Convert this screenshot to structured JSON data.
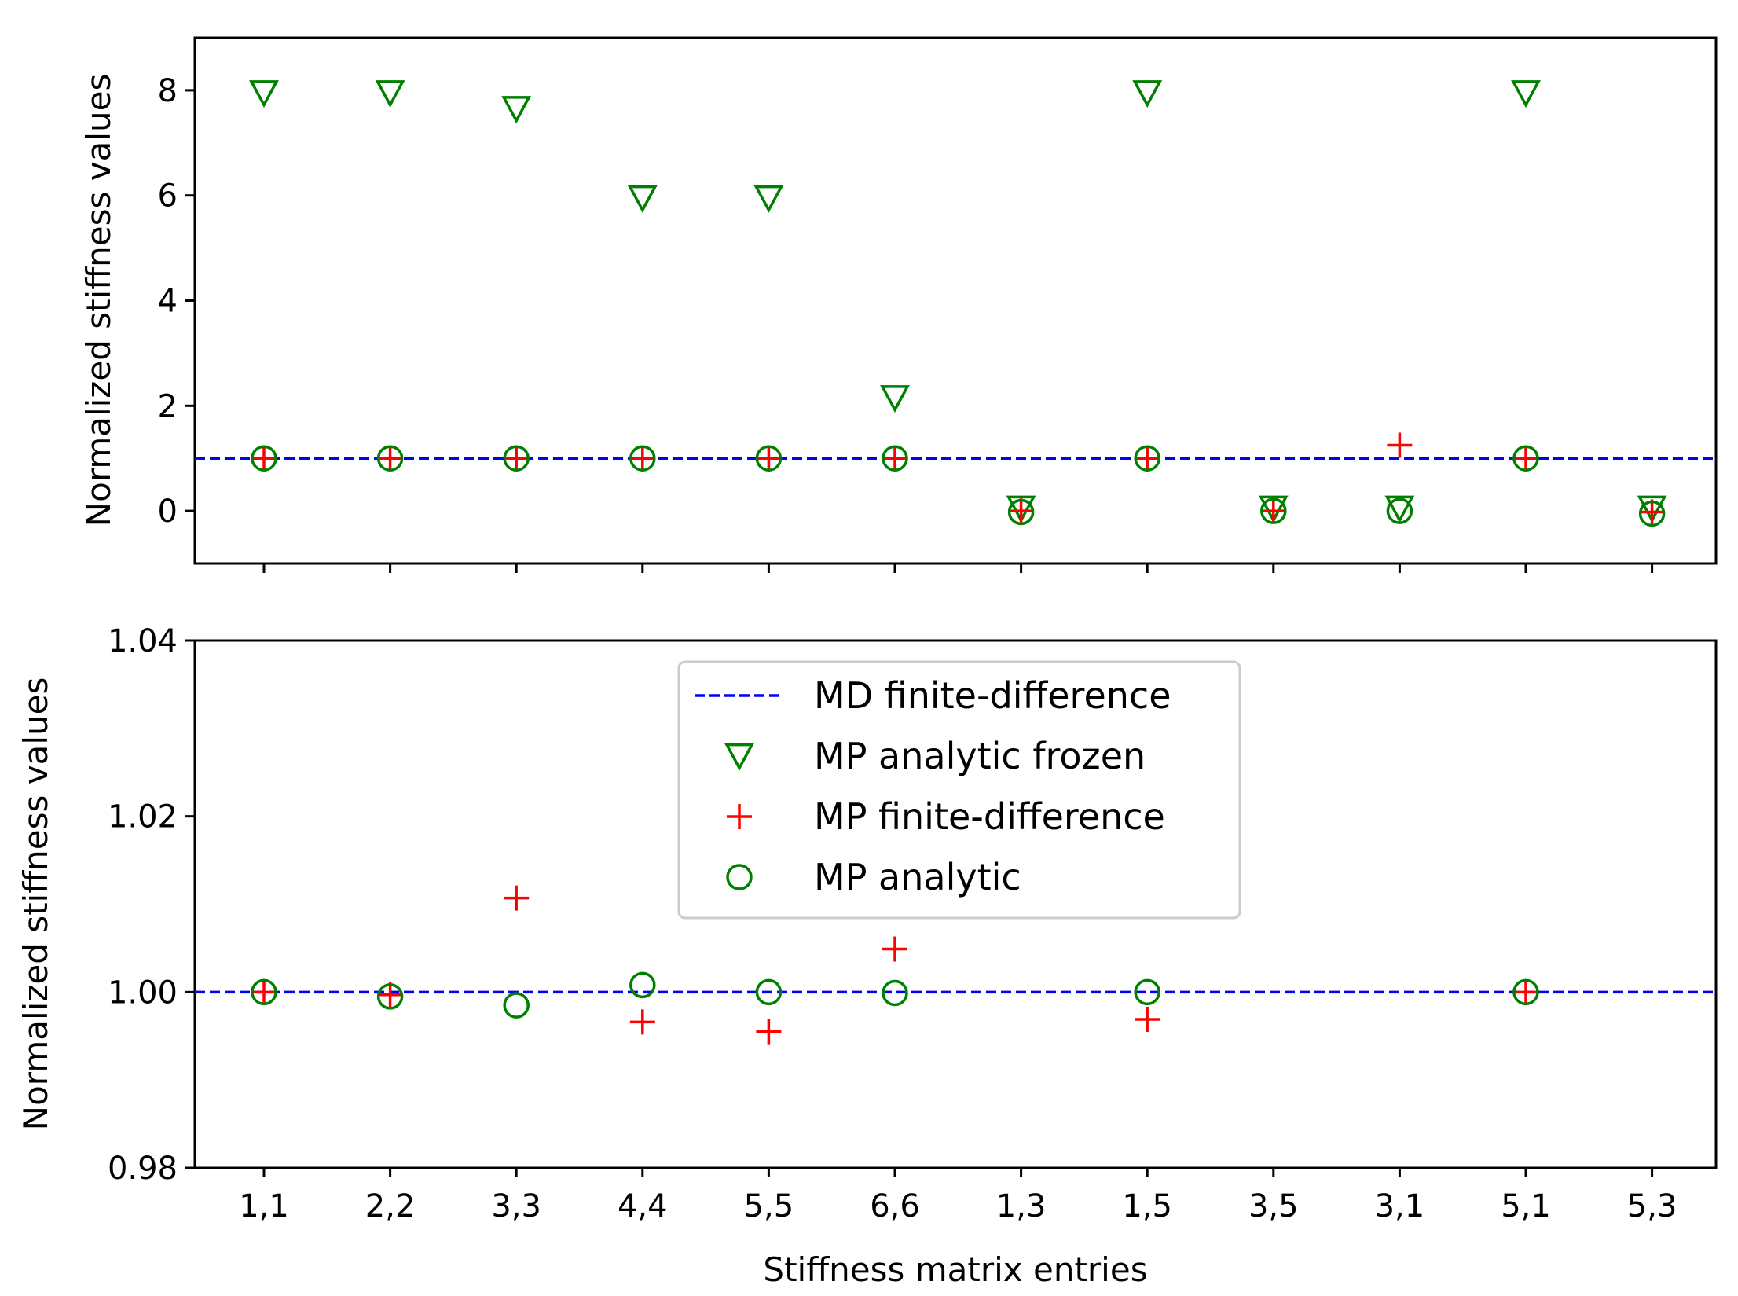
{
  "chart_data": [
    {
      "type": "scatter",
      "panel": "top",
      "categories": [
        "1,1",
        "2,2",
        "3,3",
        "4,4",
        "5,5",
        "6,6",
        "1,3",
        "1,5",
        "3,5",
        "3,1",
        "5,1",
        "5,3"
      ],
      "ylabel": "Normalized stiffness values",
      "xlabel": "",
      "ylim": [
        -1,
        9
      ],
      "yticks": [
        0,
        2,
        4,
        6,
        8
      ],
      "ytick_labels": [
        "0",
        "2",
        "4",
        "6",
        "8"
      ],
      "reference_line": {
        "name": "MD finite-difference",
        "value": 1.0,
        "color": "#0000ff",
        "style": "dashed"
      },
      "series": [
        {
          "name": "MP analytic frozen",
          "marker": "triangle-down",
          "color": "#008000",
          "values": [
            7.95,
            7.95,
            7.65,
            5.95,
            5.95,
            2.15,
            0.05,
            7.95,
            0.05,
            0.05,
            7.95,
            0.05
          ]
        },
        {
          "name": "MP finite-difference",
          "marker": "plus",
          "color": "#ff0000",
          "values": [
            1.0,
            1.0,
            1.0,
            1.0,
            1.0,
            1.0,
            0.0,
            1.0,
            0.0,
            1.25,
            1.0,
            -0.02
          ]
        },
        {
          "name": "MP analytic",
          "marker": "circle",
          "color": "#008000",
          "values": [
            1.0,
            1.0,
            1.0,
            1.0,
            1.0,
            1.0,
            -0.02,
            1.0,
            0.0,
            0.0,
            1.0,
            -0.05
          ]
        }
      ]
    },
    {
      "type": "scatter",
      "panel": "bottom",
      "categories": [
        "1,1",
        "2,2",
        "3,3",
        "4,4",
        "5,5",
        "6,6",
        "1,3",
        "1,5",
        "3,5",
        "3,1",
        "5,1",
        "5,3"
      ],
      "xlabel": "Stiffness matrix entries",
      "ylabel": "Normalized stiffness values",
      "ylim": [
        0.98,
        1.04
      ],
      "yticks": [
        0.98,
        1.0,
        1.02,
        1.04
      ],
      "ytick_labels": [
        "0.98",
        "1.00",
        "1.02",
        "1.04"
      ],
      "reference_line": {
        "name": "MD finite-difference",
        "value": 1.0,
        "color": "#0000ff",
        "style": "dashed"
      },
      "series": [
        {
          "name": "MP finite-difference",
          "marker": "plus",
          "color": "#ff0000",
          "values": [
            1.0,
            0.9997,
            1.0107,
            0.9966,
            0.9955,
            1.0049,
            null,
            0.9969,
            null,
            null,
            1.0,
            null
          ]
        },
        {
          "name": "MP analytic",
          "marker": "circle",
          "color": "#008000",
          "values": [
            1.0,
            0.9995,
            0.9985,
            1.0008,
            1.0,
            0.9999,
            null,
            1.0,
            null,
            null,
            1.0,
            null
          ]
        }
      ],
      "legend": {
        "placement": "upper-center",
        "entries": [
          {
            "label": "MD finite-difference",
            "marker": "dashed-line",
            "color": "#0000ff"
          },
          {
            "label": "MP analytic frozen",
            "marker": "triangle-down",
            "color": "#008000"
          },
          {
            "label": "MP finite-difference",
            "marker": "plus",
            "color": "#ff0000"
          },
          {
            "label": "MP analytic",
            "marker": "circle",
            "color": "#008000"
          }
        ]
      }
    }
  ]
}
